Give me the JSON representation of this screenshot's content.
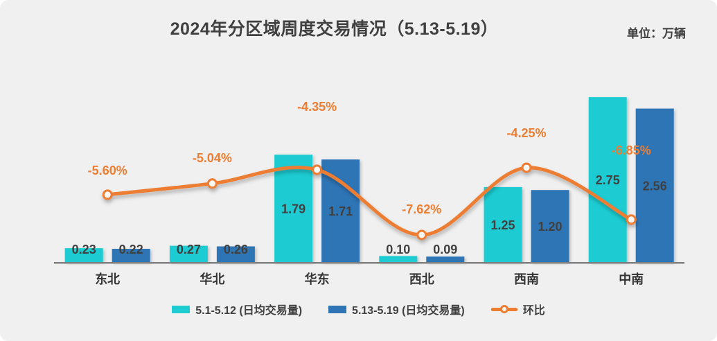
{
  "header": {
    "title": "2024年分区域周度交易情况（5.13-5.19）",
    "unit_label": "单位：万辆"
  },
  "legend": {
    "items": [
      {
        "label": "5.1-5.12 (日均交易量)",
        "swatch": "cyan-bar",
        "color": "#1FCCD2"
      },
      {
        "label": "5.13-5.19 (日均交易量)",
        "swatch": "blue-bar",
        "color": "#2F75B6"
      },
      {
        "label": "环比",
        "swatch": "orange-line",
        "color": "#ED7D31"
      }
    ]
  },
  "chart_data": {
    "type": "bar",
    "subtype": "grouped-bar-with-smooth-line-overlay",
    "title": "2024年分区域周度交易情况（5.13-5.19）",
    "unit": "万辆",
    "categories": [
      "东北",
      "华北",
      "华东",
      "西北",
      "西南",
      "中南"
    ],
    "series": [
      {
        "name": "5.1-5.12 (日均交易量)",
        "type": "bar",
        "color": "#1FCCD2",
        "values": [
          0.23,
          0.27,
          1.79,
          0.1,
          1.25,
          2.75
        ],
        "labels": [
          "0.23",
          "0.27",
          "1.79",
          "0.10",
          "1.25",
          "2.75"
        ]
      },
      {
        "name": "5.13-5.19 (日均交易量)",
        "type": "bar",
        "color": "#2F75B6",
        "values": [
          0.22,
          0.26,
          1.71,
          0.09,
          1.2,
          2.56
        ],
        "labels": [
          "0.22",
          "0.26",
          "1.71",
          "0.09",
          "1.20",
          "2.56"
        ]
      },
      {
        "name": "环比",
        "type": "line",
        "color": "#ED7D31",
        "values": [
          -5.6,
          -5.04,
          -4.35,
          -7.62,
          -4.25,
          -6.85
        ],
        "labels": [
          "-5.60%",
          "-5.04%",
          "-4.35%",
          "-7.62%",
          "-4.25%",
          "-6.85%"
        ]
      }
    ],
    "axes": {
      "y_axis_visible": false,
      "gridlines": false,
      "baseline_color": "#7F7F7F"
    },
    "legend_position": "bottom",
    "colors": {
      "background": "#F0F0F0",
      "label_text": "#404040",
      "category_text": "#333333",
      "accent_orange": "#ED7D31"
    }
  }
}
